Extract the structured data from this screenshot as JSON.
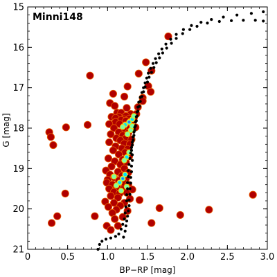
{
  "chart_data": {
    "type": "scatter",
    "title": "Minni148",
    "xlabel": "BP−RP [mag]",
    "ylabel": "G [mag]",
    "xlim": [
      0,
      3.0
    ],
    "ylim": [
      21,
      15
    ],
    "y_inverted": true,
    "x_ticks": [
      "0",
      "0.5",
      "1.0",
      "1.5",
      "2.0",
      "2.5",
      "3.0"
    ],
    "y_ticks": [
      "15",
      "16",
      "17",
      "18",
      "19",
      "20",
      "21"
    ],
    "grid": false,
    "legend": "none",
    "series": [
      {
        "marker": "large-circle",
        "color": "#b00000",
        "points": [
          [
            1.76,
            15.73
          ],
          [
            1.48,
            16.37
          ],
          [
            1.55,
            16.58
          ],
          [
            1.39,
            16.65
          ],
          [
            0.78,
            16.7
          ],
          [
            1.51,
            16.96
          ],
          [
            1.25,
            16.97
          ],
          [
            1.54,
            17.1
          ],
          [
            1.07,
            17.15
          ],
          [
            1.21,
            17.22
          ],
          [
            1.44,
            17.25
          ],
          [
            1.44,
            17.33
          ],
          [
            1.03,
            17.38
          ],
          [
            1.09,
            17.45
          ],
          [
            1.38,
            17.48
          ],
          [
            1.24,
            17.5
          ],
          [
            1.12,
            17.62
          ],
          [
            1.17,
            17.62
          ],
          [
            1.29,
            17.65
          ],
          [
            1.36,
            17.65
          ],
          [
            1.23,
            17.7
          ],
          [
            1.05,
            17.72
          ],
          [
            1.14,
            17.72
          ],
          [
            1.1,
            17.75
          ],
          [
            1.33,
            17.75
          ],
          [
            1.27,
            17.77
          ],
          [
            1.2,
            17.78
          ],
          [
            1.17,
            17.8
          ],
          [
            1.23,
            17.82
          ],
          [
            1.1,
            17.85
          ],
          [
            1.29,
            17.85
          ],
          [
            1.02,
            17.9
          ],
          [
            1.15,
            17.9
          ],
          [
            0.75,
            17.92
          ],
          [
            1.22,
            17.93
          ],
          [
            0.48,
            17.98
          ],
          [
            1.35,
            17.98
          ],
          [
            1.08,
            18.0
          ],
          [
            1.27,
            18.02
          ],
          [
            1.2,
            18.05
          ],
          [
            0.27,
            18.1
          ],
          [
            1.14,
            18.1
          ],
          [
            1.26,
            18.12
          ],
          [
            1.04,
            18.15
          ],
          [
            1.19,
            18.18
          ],
          [
            0.29,
            18.22
          ],
          [
            1.11,
            18.25
          ],
          [
            1.23,
            18.25
          ],
          [
            1.3,
            18.28
          ],
          [
            1.16,
            18.3
          ],
          [
            1.02,
            18.35
          ],
          [
            1.21,
            18.38
          ],
          [
            1.28,
            18.4
          ],
          [
            0.32,
            18.42
          ],
          [
            1.1,
            18.45
          ],
          [
            1.18,
            18.5
          ],
          [
            1.25,
            18.52
          ],
          [
            1.07,
            18.55
          ],
          [
            1.22,
            18.6
          ],
          [
            1.14,
            18.65
          ],
          [
            1.27,
            18.7
          ],
          [
            1.01,
            18.75
          ],
          [
            1.19,
            18.78
          ],
          [
            1.09,
            18.82
          ],
          [
            1.23,
            18.85
          ],
          [
            1.16,
            18.9
          ],
          [
            1.05,
            18.95
          ],
          [
            1.21,
            19.0
          ],
          [
            0.98,
            19.05
          ],
          [
            1.13,
            19.08
          ],
          [
            1.26,
            19.1
          ],
          [
            1.03,
            19.15
          ],
          [
            1.18,
            19.18
          ],
          [
            1.08,
            19.22
          ],
          [
            1.23,
            19.25
          ],
          [
            1.0,
            19.28
          ],
          [
            1.14,
            19.3
          ],
          [
            0.99,
            19.35
          ],
          [
            1.2,
            19.35
          ],
          [
            1.06,
            19.4
          ],
          [
            1.26,
            19.4
          ],
          [
            1.12,
            19.45
          ],
          [
            1.02,
            19.5
          ],
          [
            1.19,
            19.52
          ],
          [
            1.31,
            19.52
          ],
          [
            1.08,
            19.58
          ],
          [
            1.24,
            19.6
          ],
          [
            0.47,
            19.62
          ],
          [
            1.15,
            19.62
          ],
          [
            1.04,
            19.68
          ],
          [
            2.82,
            19.65
          ],
          [
            1.13,
            19.72
          ],
          [
            1.28,
            19.75
          ],
          [
            1.4,
            19.78
          ],
          [
            0.97,
            19.82
          ],
          [
            1.08,
            19.85
          ],
          [
            1.21,
            19.85
          ],
          [
            1.16,
            19.92
          ],
          [
            1.01,
            19.95
          ],
          [
            1.65,
            19.98
          ],
          [
            1.11,
            20.02
          ],
          [
            2.27,
            20.02
          ],
          [
            1.25,
            20.05
          ],
          [
            1.06,
            20.1
          ],
          [
            1.91,
            20.15
          ],
          [
            0.84,
            20.18
          ],
          [
            0.37,
            20.18
          ],
          [
            1.19,
            20.2
          ],
          [
            1.09,
            20.25
          ],
          [
            0.3,
            20.35
          ],
          [
            1.55,
            20.35
          ],
          [
            0.99,
            20.42
          ],
          [
            1.13,
            20.42
          ],
          [
            1.04,
            20.52
          ]
        ]
      },
      {
        "marker": "density-core",
        "colors": [
          "#ffd400",
          "#7fffa0",
          "#00e0ff",
          "#2a6cff"
        ],
        "points": [
          [
            1.27,
            17.85,
            3
          ],
          [
            1.22,
            17.92,
            2
          ],
          [
            1.31,
            17.78,
            2
          ],
          [
            1.19,
            17.97,
            1
          ],
          [
            1.29,
            18.05,
            1
          ],
          [
            1.25,
            18.15,
            1
          ],
          [
            1.24,
            18.72,
            2
          ],
          [
            1.27,
            18.6,
            1
          ],
          [
            1.21,
            18.8,
            1
          ],
          [
            1.19,
            19.25,
            3
          ],
          [
            1.15,
            19.35,
            2
          ],
          [
            1.22,
            19.15,
            2
          ],
          [
            1.11,
            19.42,
            1
          ],
          [
            1.17,
            19.55,
            1
          ],
          [
            1.24,
            19.45,
            1
          ],
          [
            1.08,
            19.2,
            1
          ],
          [
            1.31,
            17.95,
            1
          ],
          [
            1.33,
            17.7,
            1
          ]
        ]
      },
      {
        "name": "isochrone",
        "marker": "small-dot",
        "color": "#000000",
        "points": [
          [
            0.88,
            21.0
          ],
          [
            0.9,
            20.88
          ],
          [
            0.93,
            20.8
          ],
          [
            0.98,
            20.75
          ],
          [
            1.04,
            20.72
          ],
          [
            1.1,
            20.68
          ],
          [
            1.14,
            20.62
          ],
          [
            1.17,
            20.5
          ],
          [
            1.19,
            20.38
          ],
          [
            1.21,
            20.25
          ],
          [
            1.22,
            20.1
          ],
          [
            1.23,
            19.95
          ],
          [
            1.24,
            19.8
          ],
          [
            1.24,
            19.65
          ],
          [
            1.25,
            19.5
          ],
          [
            1.25,
            19.35
          ],
          [
            1.26,
            19.2
          ],
          [
            1.26,
            19.05
          ],
          [
            1.27,
            18.9
          ],
          [
            1.28,
            18.75
          ],
          [
            1.29,
            18.62
          ],
          [
            1.3,
            18.48
          ],
          [
            1.31,
            18.35
          ],
          [
            1.32,
            18.22
          ],
          [
            1.33,
            18.1
          ],
          [
            1.34,
            17.98
          ],
          [
            1.35,
            17.85
          ],
          [
            1.36,
            17.72
          ],
          [
            1.37,
            17.6
          ],
          [
            1.38,
            17.48
          ],
          [
            1.39,
            17.36
          ],
          [
            1.41,
            17.24
          ],
          [
            1.43,
            17.12
          ],
          [
            1.45,
            17.0
          ],
          [
            1.47,
            16.88
          ],
          [
            1.49,
            16.76
          ],
          [
            1.51,
            16.64
          ],
          [
            1.54,
            16.52
          ],
          [
            1.57,
            16.4
          ],
          [
            1.6,
            16.28
          ],
          [
            1.64,
            16.16
          ],
          [
            1.68,
            16.04
          ],
          [
            1.73,
            15.92
          ],
          [
            1.79,
            15.8
          ],
          [
            1.86,
            15.68
          ],
          [
            1.95,
            15.56
          ],
          [
            2.05,
            15.46
          ],
          [
            2.17,
            15.38
          ],
          [
            2.3,
            15.31
          ],
          [
            2.45,
            15.25
          ],
          [
            2.62,
            15.2
          ],
          [
            2.8,
            15.16
          ],
          [
            2.95,
            15.12
          ],
          [
            1.3,
            18.55
          ],
          [
            1.31,
            18.42
          ],
          [
            1.32,
            18.3
          ],
          [
            1.33,
            18.18
          ],
          [
            1.34,
            18.06
          ],
          [
            1.35,
            17.94
          ],
          [
            1.36,
            17.82
          ],
          [
            1.37,
            17.7
          ],
          [
            1.38,
            17.58
          ],
          [
            1.4,
            17.46
          ],
          [
            1.41,
            17.34
          ],
          [
            1.43,
            17.22
          ],
          [
            1.45,
            17.1
          ],
          [
            1.47,
            16.98
          ],
          [
            1.5,
            16.86
          ],
          [
            1.52,
            16.74
          ],
          [
            1.55,
            16.62
          ],
          [
            1.58,
            16.5
          ],
          [
            1.61,
            16.38
          ],
          [
            1.65,
            16.26
          ],
          [
            1.69,
            16.14
          ],
          [
            1.74,
            16.02
          ],
          [
            1.8,
            15.9
          ],
          [
            1.86,
            15.78
          ],
          [
            1.94,
            15.66
          ],
          [
            2.03,
            15.56
          ],
          [
            2.12,
            15.48
          ],
          [
            2.25,
            15.4
          ],
          [
            2.4,
            15.36
          ],
          [
            2.55,
            15.34
          ],
          [
            2.7,
            15.33
          ],
          [
            2.85,
            15.33
          ],
          [
            2.95,
            15.35
          ],
          [
            1.2,
            20.7
          ],
          [
            1.22,
            20.55
          ],
          [
            1.23,
            20.42
          ],
          [
            1.24,
            20.3
          ],
          [
            1.25,
            20.18
          ],
          [
            1.26,
            20.05
          ],
          [
            1.27,
            19.92
          ],
          [
            1.27,
            19.78
          ],
          [
            1.28,
            19.64
          ],
          [
            1.28,
            19.5
          ],
          [
            1.29,
            19.36
          ],
          [
            1.29,
            19.22
          ],
          [
            1.3,
            19.08
          ],
          [
            1.3,
            18.94
          ],
          [
            1.31,
            18.8
          ],
          [
            1.31,
            18.66
          ]
        ]
      }
    ]
  }
}
